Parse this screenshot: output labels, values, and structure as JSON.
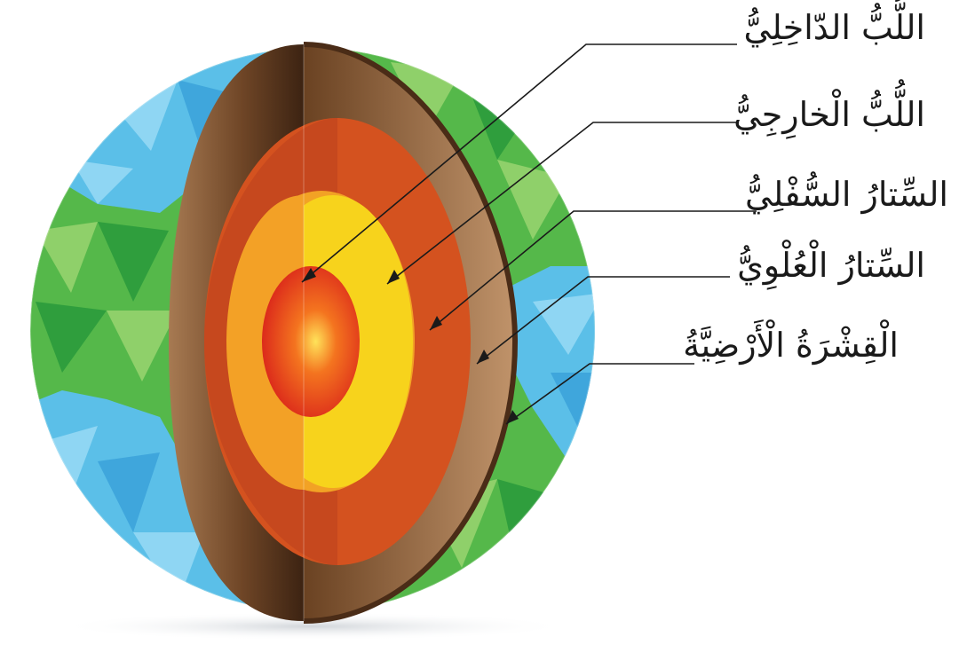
{
  "labels": {
    "inner_core": "اللُّبُّ الدّاخِلِيُّ",
    "outer_core": "اللُّبُّ الْخارِجِيُّ",
    "lower_mantle": "السِّتارُ السُّفْلِيُّ",
    "upper_mantle": "السِّتارُ الْعُلْوِيُّ",
    "crust": "الْقِشْرَةُ الْأَرْضِيَّةُ"
  },
  "colors": {
    "ocean": "#5bbfe8",
    "ocean_light": "#8fd6f3",
    "land": "#55b84a",
    "land_light": "#8fd06a",
    "crust": "#b3835b",
    "crust_dark": "#4a2c17",
    "upper_mantle": "#d4521f",
    "lower_mantle": "#f2a225",
    "outer_core": "#f7d31c",
    "inner_core": "#e22b1d",
    "inner_core_center": "#ffd84a"
  }
}
